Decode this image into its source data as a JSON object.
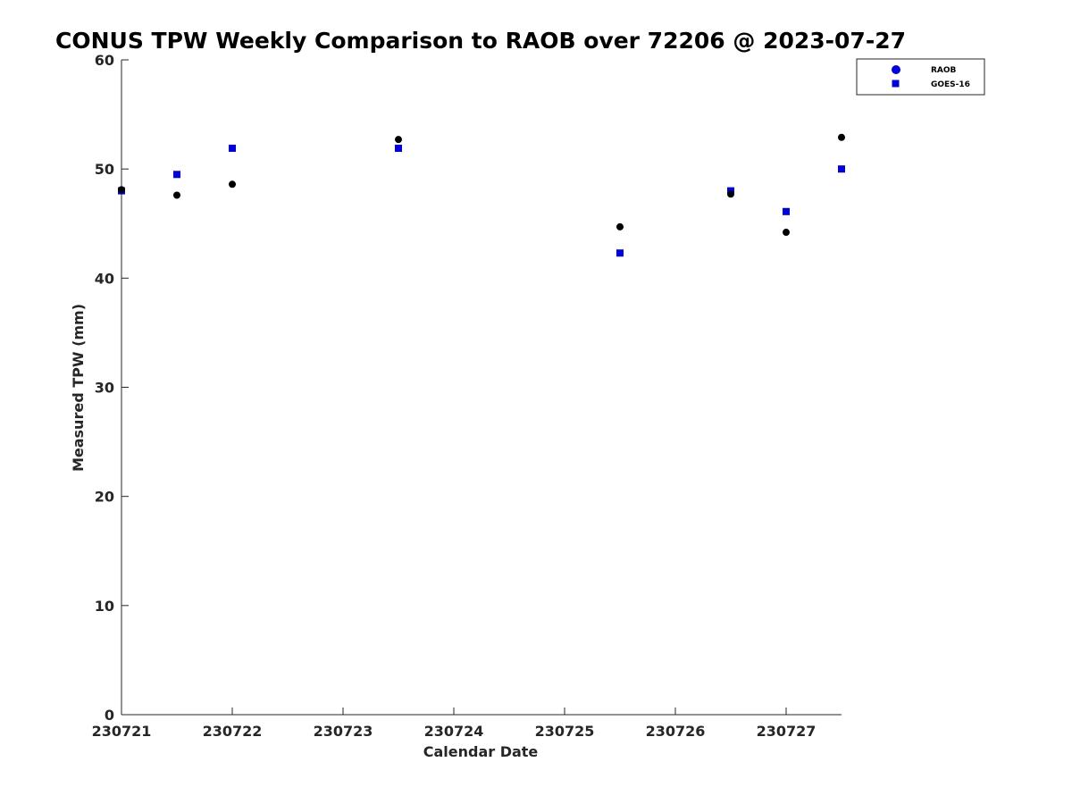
{
  "chart_data": {
    "type": "scatter",
    "title": "CONUS TPW Weekly Comparison to RAOB over 72206 @ 2023-07-27",
    "xlabel": "Calendar Date",
    "ylabel": "Measured TPW (mm)",
    "x_tick_labels": [
      "230721",
      "230722",
      "230723",
      "230724",
      "230725",
      "230726",
      "230727"
    ],
    "x_tick_days": [
      0,
      1,
      2,
      3,
      4,
      5,
      6
    ],
    "xlim_days": [
      0,
      6.5
    ],
    "ylim": [
      0,
      60
    ],
    "y_ticks": [
      0,
      10,
      20,
      30,
      40,
      50,
      60
    ],
    "y_tick_labels": [
      "0",
      "10",
      "20",
      "30",
      "40",
      "50",
      "60"
    ],
    "grid": false,
    "legend_position": "top-right",
    "colors": {
      "raob": "#000000",
      "goes": "#0000e6",
      "legend_raob_marker": "#0000e6",
      "axis": "#262626"
    },
    "series": [
      {
        "name": "RAOB",
        "marker": "circle",
        "x": [
          0,
          0.5,
          1,
          2.5,
          4.5,
          5.5,
          6,
          6.5
        ],
        "y": [
          48.1,
          47.6,
          48.6,
          52.7,
          44.7,
          47.7,
          44.2,
          52.9
        ]
      },
      {
        "name": "GOES-16",
        "marker": "square",
        "x": [
          0,
          0.5,
          1,
          2.5,
          4.5,
          5.5,
          6,
          6.5
        ],
        "y": [
          48.0,
          49.5,
          51.9,
          51.9,
          42.3,
          48.0,
          46.1,
          50.0
        ]
      }
    ]
  }
}
